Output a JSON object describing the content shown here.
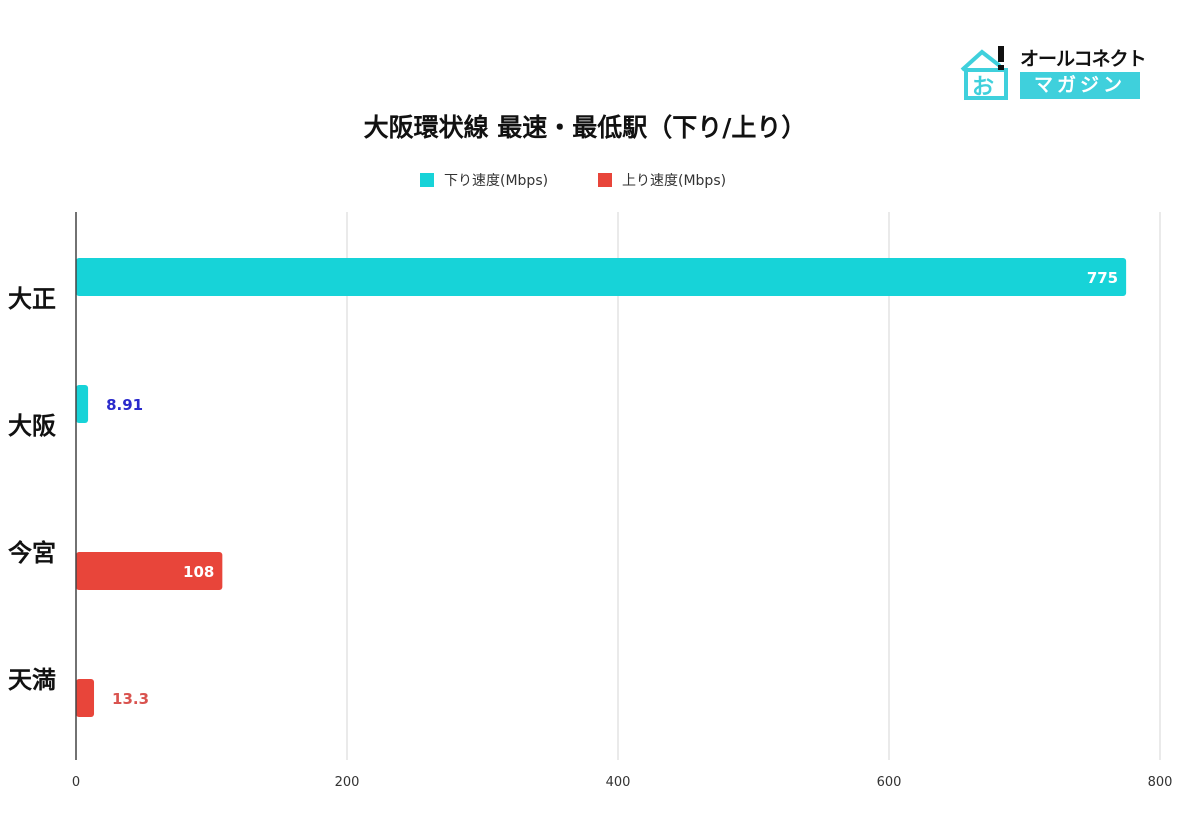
{
  "logo": {
    "line1": "オールコネクト",
    "line2": "マガジン",
    "icon": "house-icon",
    "color": "#3fd0dc"
  },
  "chart_data": {
    "type": "bar",
    "orientation": "horizontal",
    "title": "大阪環状線 最速・最低駅（下り/上り）",
    "categories": [
      "大正",
      "大阪",
      "今宮",
      "天満"
    ],
    "series": [
      {
        "name": "下り速度(Mbps)",
        "color": "#17d3d8",
        "values": [
          775,
          8.91,
          null,
          null
        ],
        "label_colors": [
          "#ffffff",
          "#2a2acc",
          null,
          null
        ]
      },
      {
        "name": "上り速度(Mbps)",
        "color": "#e8453a",
        "values": [
          null,
          null,
          108,
          13.3
        ],
        "label_colors": [
          null,
          null,
          "#ffffff",
          "#d9534f"
        ]
      }
    ],
    "xlim": [
      0,
      800
    ],
    "xticks": [
      "0",
      "200",
      "400",
      "600",
      "800"
    ],
    "grid": true,
    "legend_position": "top"
  }
}
